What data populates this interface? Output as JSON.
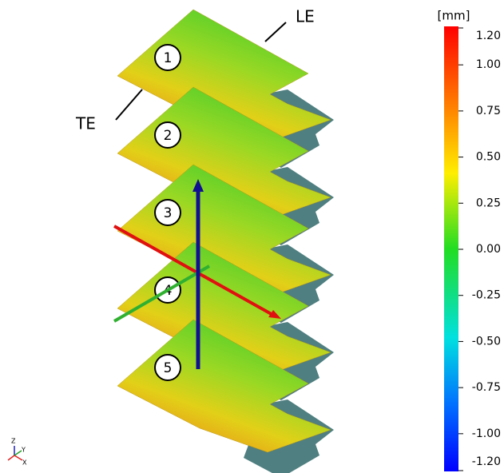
{
  "labels": {
    "le": "LE",
    "te": "TE"
  },
  "plates": [
    "1",
    "2",
    "3",
    "4",
    "5"
  ],
  "triad": {
    "z": "Z",
    "y": "Y",
    "x": "X"
  },
  "colorbar": {
    "unit": "[mm]",
    "lim": [
      -1.2,
      1.2
    ],
    "ticks": [
      {
        "value": 1.2,
        "label": "1.20"
      },
      {
        "value": 1.0,
        "label": "1.00"
      },
      {
        "value": 0.75,
        "label": "0.75"
      },
      {
        "value": 0.5,
        "label": "0.50"
      },
      {
        "value": 0.25,
        "label": "0.25"
      },
      {
        "value": 0.0,
        "label": "0.00"
      },
      {
        "value": -0.25,
        "label": "-0.25"
      },
      {
        "value": -0.5,
        "label": "-0.50"
      },
      {
        "value": -0.75,
        "label": "-0.75"
      },
      {
        "value": -1.0,
        "label": "-1.00"
      },
      {
        "value": -1.2,
        "label": "-1.20"
      }
    ]
  }
}
